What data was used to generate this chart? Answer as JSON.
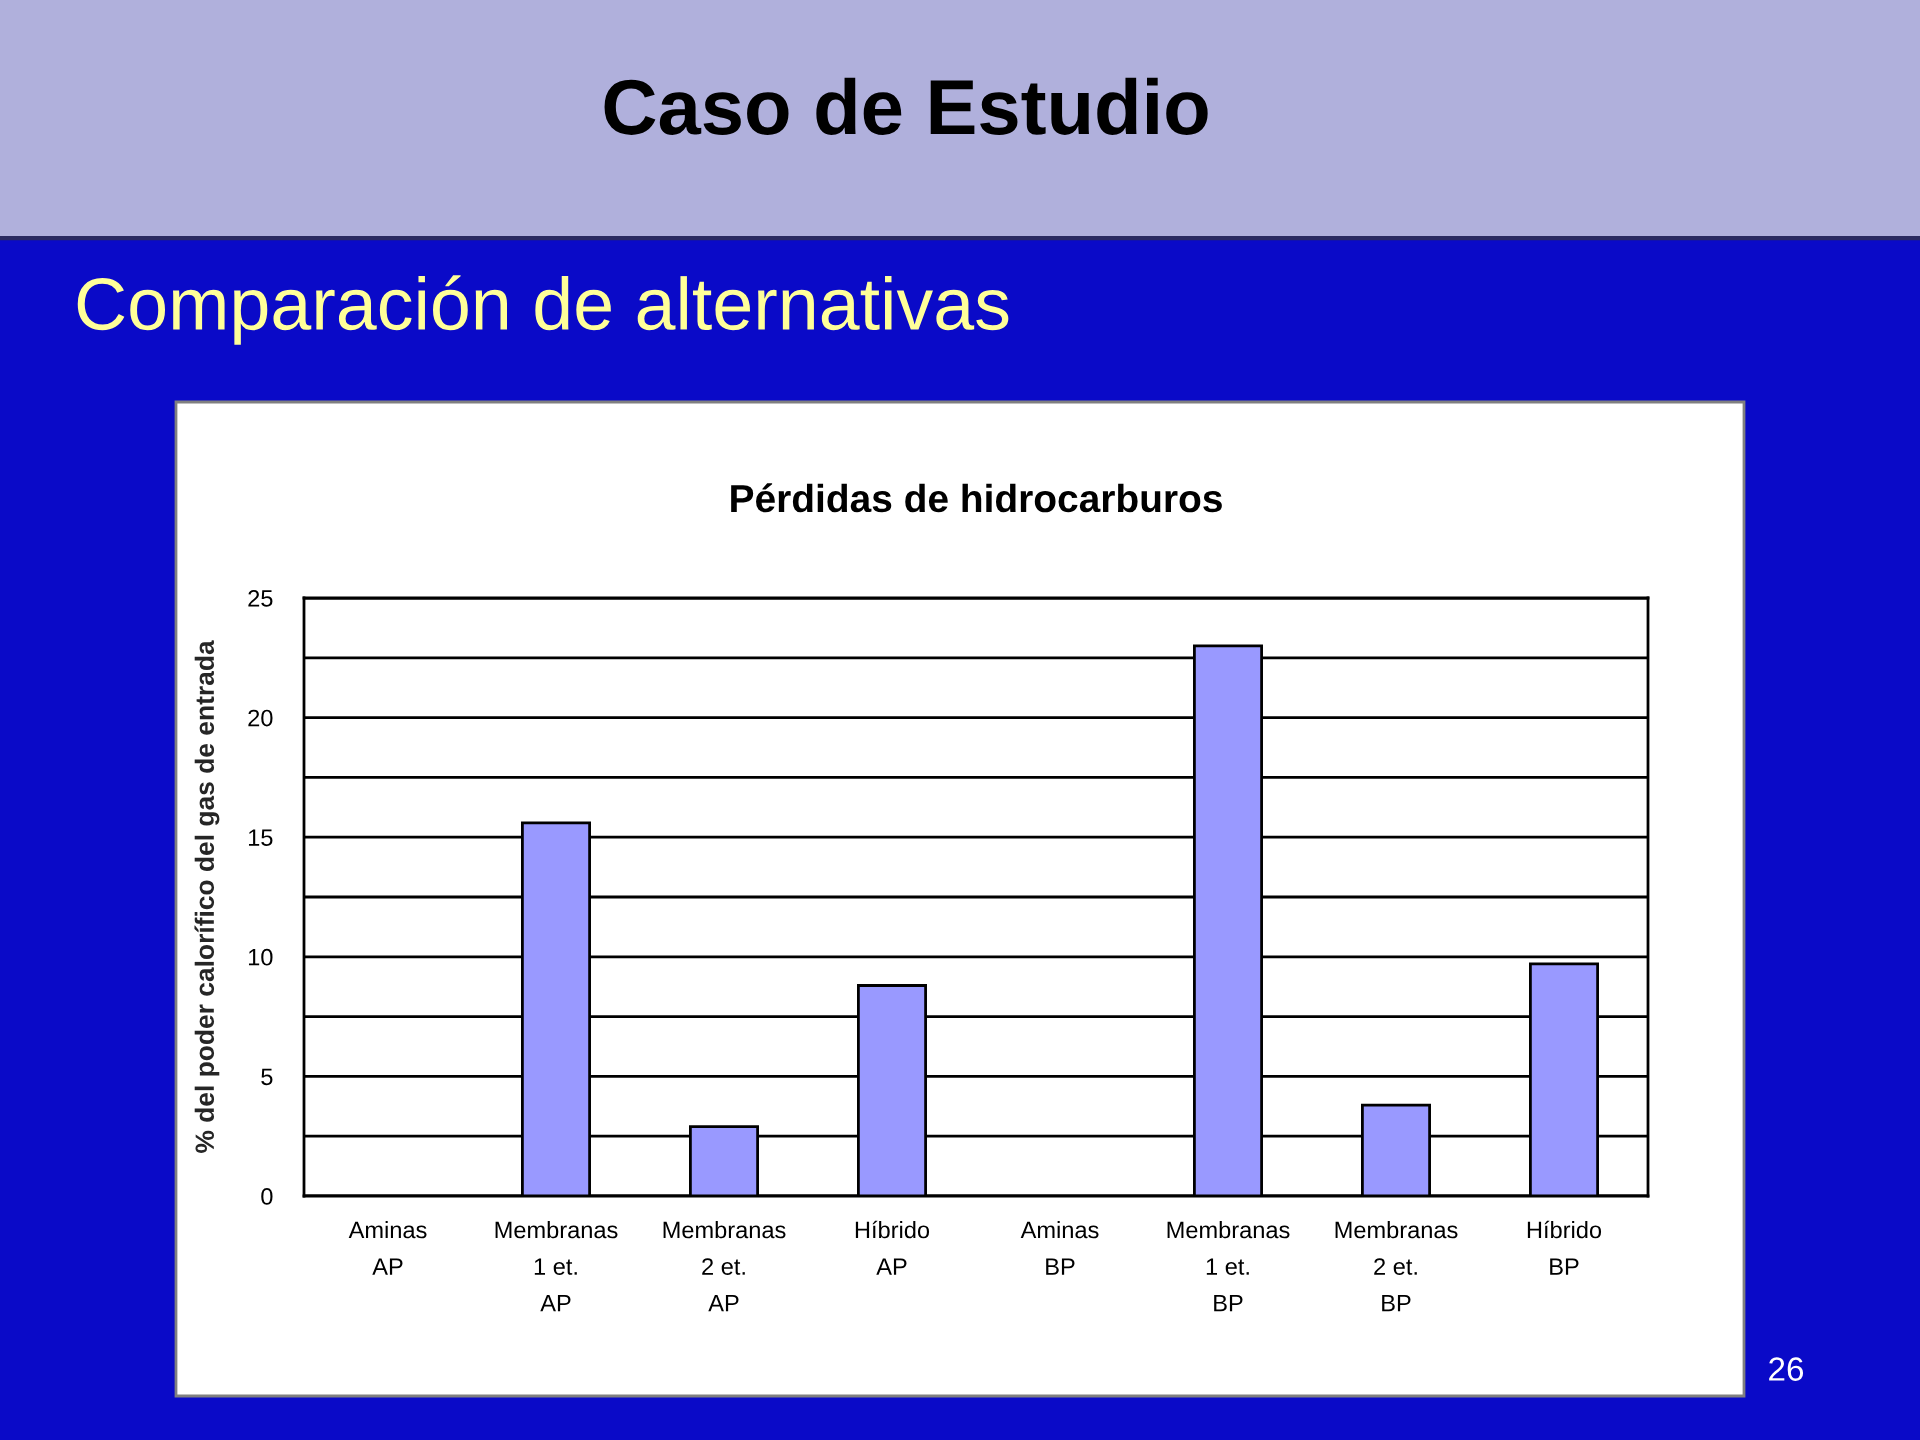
{
  "chart_data": {
    "type": "bar",
    "title": "Pérdidas de hidrocarburos",
    "ylabel": "% del poder calorífico del gas de entrada",
    "categories": [
      "Aminas\nAP",
      "Membranas\n1 et.\nAP",
      "Membranas\n2 et.\nAP",
      "Híbrido\nAP",
      "Aminas\nBP",
      "Membranas\n1 et.\nBP",
      "Membranas\n2 et.\nBP",
      "Híbrido\nBP"
    ],
    "values": [
      0,
      15.6,
      2.9,
      8.8,
      0,
      23,
      3.8,
      9.7
    ],
    "color": "#9999ff",
    "ylim": [
      0,
      25
    ],
    "yticks": [
      0,
      {
        "value": 2.5,
        "label": null
      },
      5,
      {
        "value": 7.5,
        "label": null
      },
      10,
      {
        "value": 12.5,
        "label": null
      },
      15,
      {
        "value": 17.5,
        "label": null
      },
      20,
      {
        "value": 22.5,
        "label": null
      },
      25
    ],
    "grid": "y",
    "annotations": [
      "Caso de Estudio",
      "Comparación de alternativas",
      "26"
    ]
  }
}
